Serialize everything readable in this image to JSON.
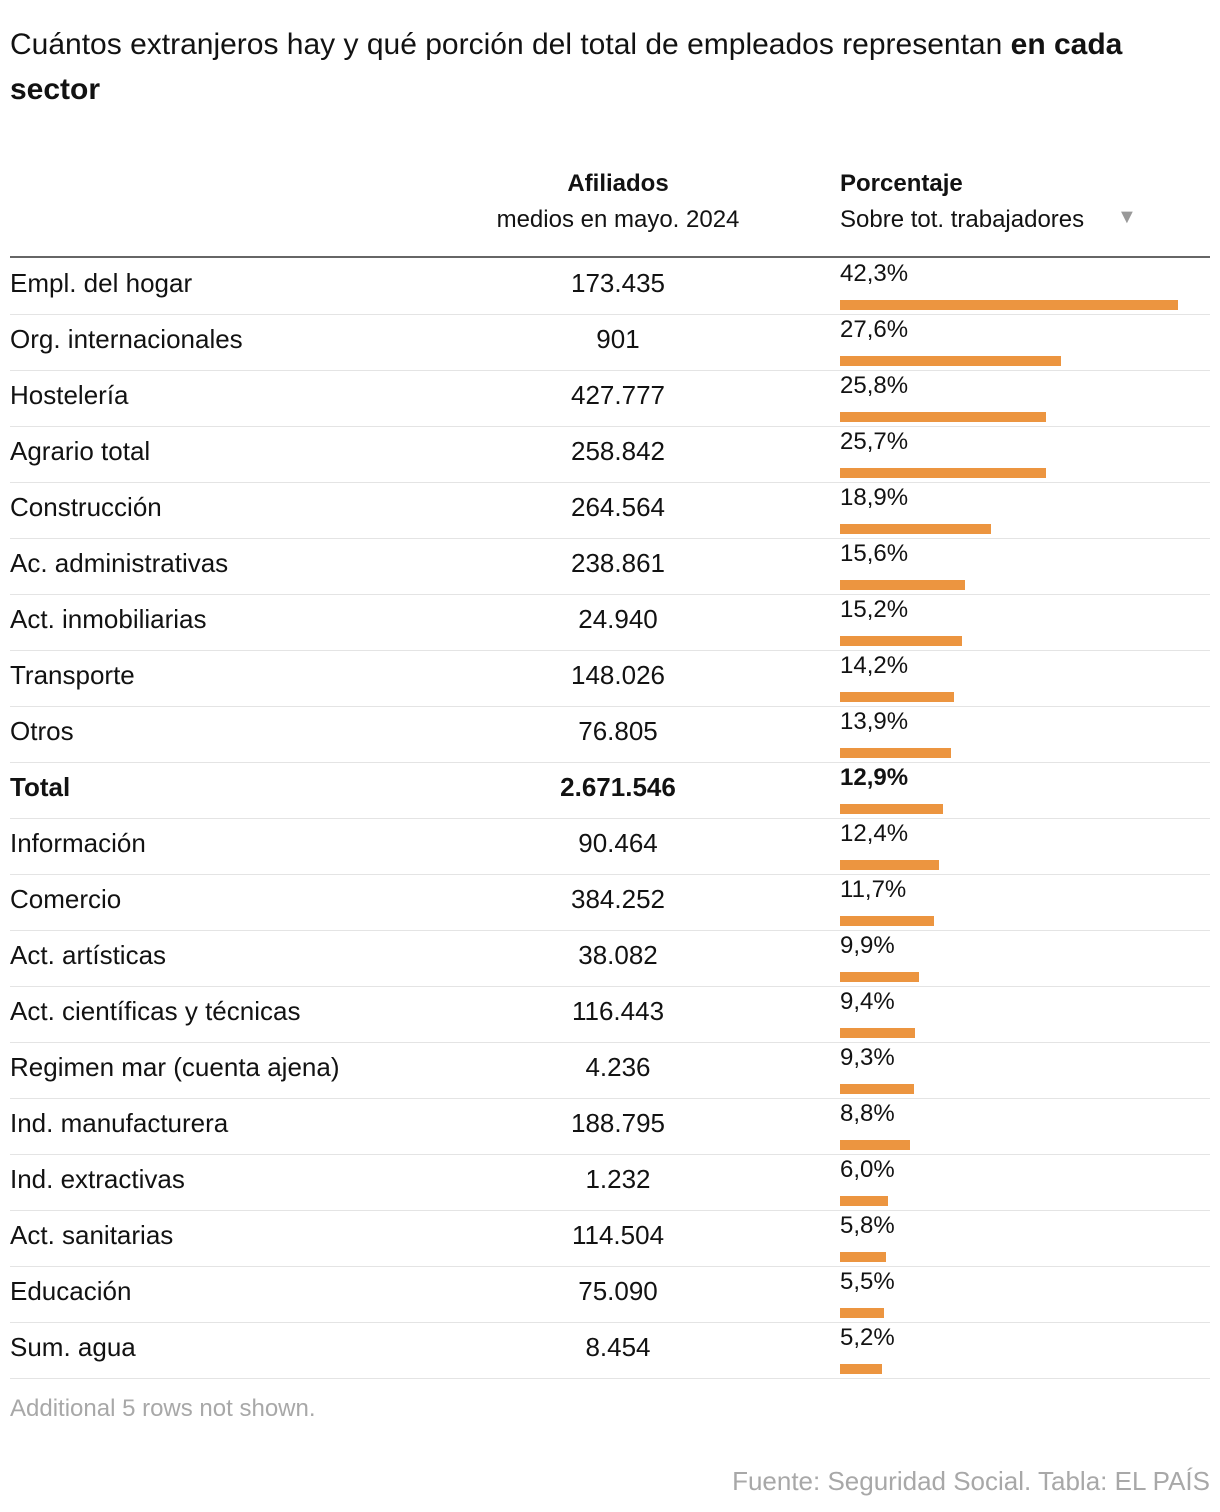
{
  "title": {
    "text": "Cuántos extranjeros hay y qué porción del total de empleados representan",
    "bold": "en cada sector"
  },
  "columns": {
    "afiliados": {
      "title": "Afiliados",
      "subtitle": "medios en mayo. 2024"
    },
    "porcentaje": {
      "title": "Porcentaje",
      "subtitle": "Sobre tot. trabajadores"
    }
  },
  "bar_color": "#ec9540",
  "table": {
    "rows": [
      {
        "sector": "Empl. del hogar",
        "afiliados": "173.435",
        "value": 42.3,
        "value_label": "42,3%"
      },
      {
        "sector": "Org. internacionales",
        "afiliados": "901",
        "value": 27.6,
        "value_label": "27,6%"
      },
      {
        "sector": "Hostelería",
        "afiliados": "427.777",
        "value": 25.8,
        "value_label": "25,8%"
      },
      {
        "sector": "Agrario total",
        "afiliados": "258.842",
        "value": 25.7,
        "value_label": "25,7%"
      },
      {
        "sector": "Construcción",
        "afiliados": "264.564",
        "value": 18.9,
        "value_label": "18,9%"
      },
      {
        "sector": "Ac. administrativas",
        "afiliados": "238.861",
        "value": 15.6,
        "value_label": "15,6%"
      },
      {
        "sector": "Act. inmobiliarias",
        "afiliados": "24.940",
        "value": 15.2,
        "value_label": "15,2%"
      },
      {
        "sector": "Transporte",
        "afiliados": "148.026",
        "value": 14.2,
        "value_label": "14,2%"
      },
      {
        "sector": "Otros",
        "afiliados": "76.805",
        "value": 13.9,
        "value_label": "13,9%"
      },
      {
        "sector": "Total",
        "afiliados": "2.671.546",
        "value": 12.9,
        "value_label": "12,9%",
        "bold": true
      },
      {
        "sector": "Información",
        "afiliados": "90.464",
        "value": 12.4,
        "value_label": "12,4%"
      },
      {
        "sector": "Comercio",
        "afiliados": "384.252",
        "value": 11.7,
        "value_label": "11,7%"
      },
      {
        "sector": "Act. artísticas",
        "afiliados": "38.082",
        "value": 9.9,
        "value_label": "9,9%"
      },
      {
        "sector": "Act. científicas y técnicas",
        "afiliados": "116.443",
        "value": 9.4,
        "value_label": "9,4%"
      },
      {
        "sector": "Regimen mar (cuenta ajena)",
        "afiliados": "4.236",
        "value": 9.3,
        "value_label": "9,3%"
      },
      {
        "sector": "Ind. manufacturera",
        "afiliados": "188.795",
        "value": 8.8,
        "value_label": "8,8%"
      },
      {
        "sector": "Ind. extractivas",
        "afiliados": "1.232",
        "value": 6.0,
        "value_label": "6,0%"
      },
      {
        "sector": "Act. sanitarias",
        "afiliados": "114.504",
        "value": 5.8,
        "value_label": "5,8%"
      },
      {
        "sector": "Educación",
        "afiliados": "75.090",
        "value": 5.5,
        "value_label": "5,5%"
      },
      {
        "sector": "Sum. agua",
        "afiliados": "8.454",
        "value": 5.2,
        "value_label": "5,2%"
      }
    ]
  },
  "notes": "Additional 5 rows not shown.",
  "source": "Fuente: Seguridad Social. Tabla: EL PAÍS"
}
